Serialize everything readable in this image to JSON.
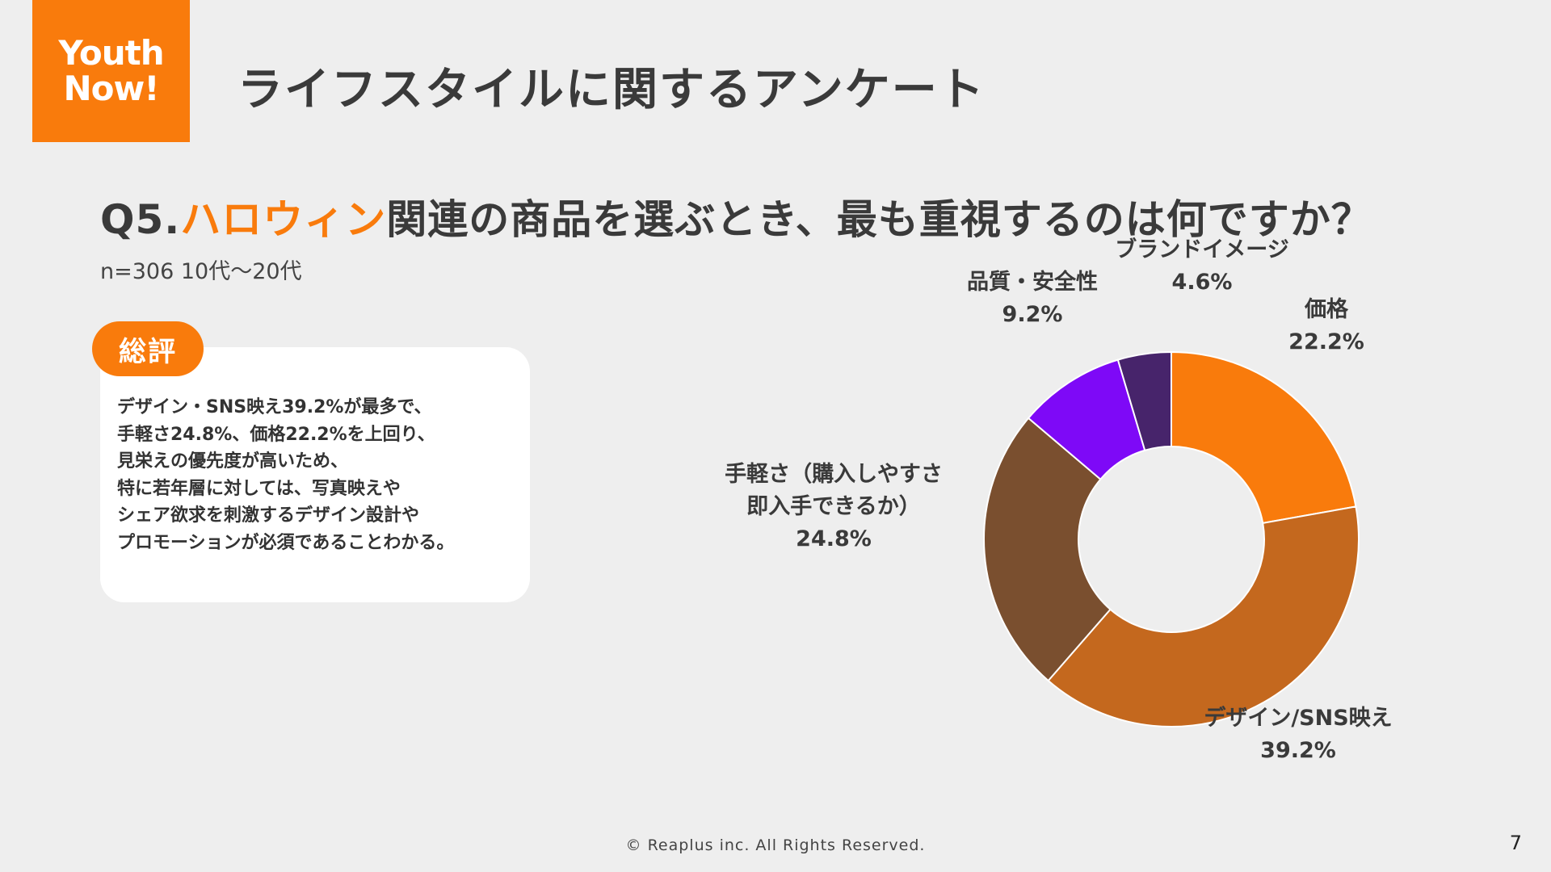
{
  "logo": {
    "line1": "Youth",
    "line2": "Now!"
  },
  "header": {
    "title": "ライフスタイルに関するアンケート"
  },
  "question": {
    "prefix": "Q5.",
    "highlight": "ハロウィン",
    "suffix": "関連の商品を選ぶとき、最も重視するのは何ですか？"
  },
  "sample": "n=306 10代〜20代",
  "summary": {
    "badge": "総評",
    "lines": [
      "デザイン・SNS映え39.2%が最多で、",
      "手軽さ24.8%、価格22.2%を上回り、",
      "見栄えの優先度が高いため、",
      "特に若年層に対しては、写真映えや",
      "シェア欲求を刺激するデザイン設計や",
      "プロモーションが必須であることわかる。"
    ]
  },
  "chart_data": {
    "type": "pie",
    "donut": true,
    "start": "12 o'clock, clockwise",
    "series": [
      {
        "label_lines": [
          "価格"
        ],
        "value": 22.2,
        "value_label": "22.2%",
        "color": "#f97b0c"
      },
      {
        "label_lines": [
          "デザイン/SNS映え"
        ],
        "value": 39.2,
        "value_label": "39.2%",
        "color": "#c4681e"
      },
      {
        "label_lines": [
          "手軽さ（購入しやすさ",
          "即入手できるか）"
        ],
        "value": 24.8,
        "value_label": "24.8%",
        "color": "#7a4f2f"
      },
      {
        "label_lines": [
          "品質・安全性"
        ],
        "value": 9.2,
        "value_label": "9.2%",
        "color": "#7e09f7"
      },
      {
        "label_lines": [
          "ブランドイメージ"
        ],
        "value": 4.6,
        "value_label": "4.6%",
        "color": "#47246b"
      }
    ]
  },
  "footer": "© Reaplus inc. All Rights Reserved.",
  "page_number": "7"
}
